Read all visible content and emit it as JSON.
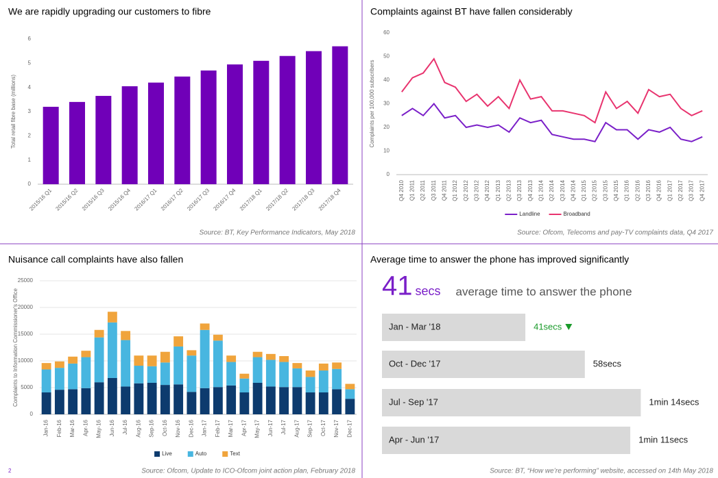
{
  "page_number": "2",
  "chart_data": [
    {
      "type": "bar",
      "title": "We are rapidly upgrading our customers to fibre",
      "y_label": "Total retail fibre base (millions)",
      "categories": [
        "2015/16 Q1",
        "2015/16 Q2",
        "2015/16 Q3",
        "2015/16 Q4",
        "2016/17 Q1",
        "2016/17 Q2",
        "2016/17 Q3",
        "2016/17 Q4",
        "2017/18 Q1",
        "2017/18 Q2",
        "2017/18 Q3",
        "2017/18 Q4"
      ],
      "values": [
        3.2,
        3.4,
        3.65,
        4.05,
        4.2,
        4.45,
        4.7,
        4.95,
        5.1,
        5.3,
        5.5,
        5.7
      ],
      "color": "#7000b8",
      "ylim": [
        0,
        6
      ],
      "yticks": [
        0,
        1,
        2,
        3,
        4,
        5,
        6
      ],
      "grid": false,
      "source": "Source: BT, Key Performance Indicators, May 2018"
    },
    {
      "type": "line",
      "title": "Complaints against BT have fallen considerably",
      "y_label": "Complaints per 100,000 subscribers",
      "categories": [
        "Q4 2010",
        "Q1 2011",
        "Q2 2011",
        "Q3 2011",
        "Q4 2011",
        "Q1 2012",
        "Q2 2012",
        "Q3 2012",
        "Q4 2012",
        "Q1 2013",
        "Q2 2013",
        "Q3 2013",
        "Q4 2013",
        "Q1 2014",
        "Q2 2014",
        "Q3 2014",
        "Q4 2014",
        "Q1 2015",
        "Q2 2015",
        "Q3 2015",
        "Q4 2015",
        "Q1 2016",
        "Q2 2016",
        "Q3 2016",
        "Q4 2016",
        "Q1 2017",
        "Q2 2017",
        "Q3 2017",
        "Q4 2017"
      ],
      "series": [
        {
          "name": "Landline",
          "color": "#7a1fc8",
          "values": [
            25,
            28,
            25,
            30,
            24,
            25,
            20,
            21,
            20,
            21,
            18,
            24,
            22,
            23,
            17,
            16,
            15,
            15,
            14,
            22,
            19,
            19,
            15,
            19,
            18,
            20,
            15,
            14,
            16
          ]
        },
        {
          "name": "Broadband",
          "color": "#e8336e",
          "values": [
            35,
            41,
            43,
            49,
            39,
            37,
            31,
            34,
            29,
            33,
            28,
            40,
            32,
            33,
            27,
            27,
            26,
            25,
            22,
            35,
            28,
            31,
            26,
            36,
            33,
            34,
            28,
            25,
            27
          ]
        }
      ],
      "ylim": [
        0,
        60
      ],
      "yticks": [
        0,
        10,
        20,
        30,
        40,
        50,
        60
      ],
      "grid": false,
      "legend": "bottom",
      "source": "Source: Ofcom, Telecoms and pay-TV complaints data, Q4 2017"
    },
    {
      "type": "stacked_bar",
      "title": "Nuisance call complaints have also fallen",
      "y_label": "Complaints to Information Commissioner's Office",
      "categories": [
        "Jan-16",
        "Feb-16",
        "Mar-16",
        "Apr-16",
        "May-16",
        "Jun-16",
        "Jul-16",
        "Aug-16",
        "Sep-16",
        "Oct-16",
        "Nov-16",
        "Dec-16",
        "Jan-17",
        "Feb-17",
        "Mar-17",
        "Apr-17",
        "May-17",
        "Jun-17",
        "Jul-17",
        "Aug-17",
        "Sep-17",
        "Oct-17",
        "Nov-17",
        "Dec-17"
      ],
      "series": [
        {
          "name": "Live",
          "color": "#0d3b6e",
          "values": [
            4100,
            4600,
            4700,
            4900,
            6000,
            6800,
            5200,
            5800,
            5900,
            5500,
            5600,
            4200,
            4900,
            5100,
            5400,
            4100,
            5900,
            5200,
            5100,
            5100,
            4100,
            4100,
            4700,
            2900
          ]
        },
        {
          "name": "Auto",
          "color": "#48b6e0",
          "values": [
            4300,
            4100,
            4800,
            5800,
            8400,
            10400,
            8700,
            3300,
            3100,
            4200,
            7100,
            6800,
            10900,
            8700,
            4400,
            2600,
            4800,
            5000,
            4700,
            3500,
            2900,
            4100,
            3800,
            1800
          ]
        },
        {
          "name": "Text",
          "color": "#f0a43c",
          "values": [
            1200,
            1200,
            1300,
            1200,
            1400,
            2000,
            1700,
            1900,
            2000,
            2000,
            1900,
            1000,
            1200,
            1100,
            1200,
            900,
            1000,
            1100,
            1100,
            1000,
            1200,
            1300,
            1200,
            1000
          ]
        }
      ],
      "ylim": [
        0,
        25000
      ],
      "yticks": [
        0,
        5000,
        10000,
        15000,
        20000,
        25000
      ],
      "grid": true,
      "legend": "bottom",
      "source": "Source: Ofcom, Update to ICO-Ofcom joint action plan, February 2018"
    },
    {
      "type": "hbar",
      "title": "Average time to answer the phone has improved significantly",
      "headline_value": 41,
      "headline_unit": "secs",
      "headline_text": "average time to answer the phone",
      "categories": [
        "Jan - Mar '18",
        "Oct - Dec '17",
        "Jul - Sep '17",
        "Apr - Jun '17"
      ],
      "values": [
        41,
        58,
        74,
        71
      ],
      "value_labels": [
        "41secs",
        "58secs",
        "1min 14secs",
        "1min 11secs"
      ],
      "color": "#d9d9d9",
      "highlight_color": "#1a9a2a",
      "source": "Source: BT, “How we’re performing” website, accessed on 14th May 2018"
    }
  ]
}
